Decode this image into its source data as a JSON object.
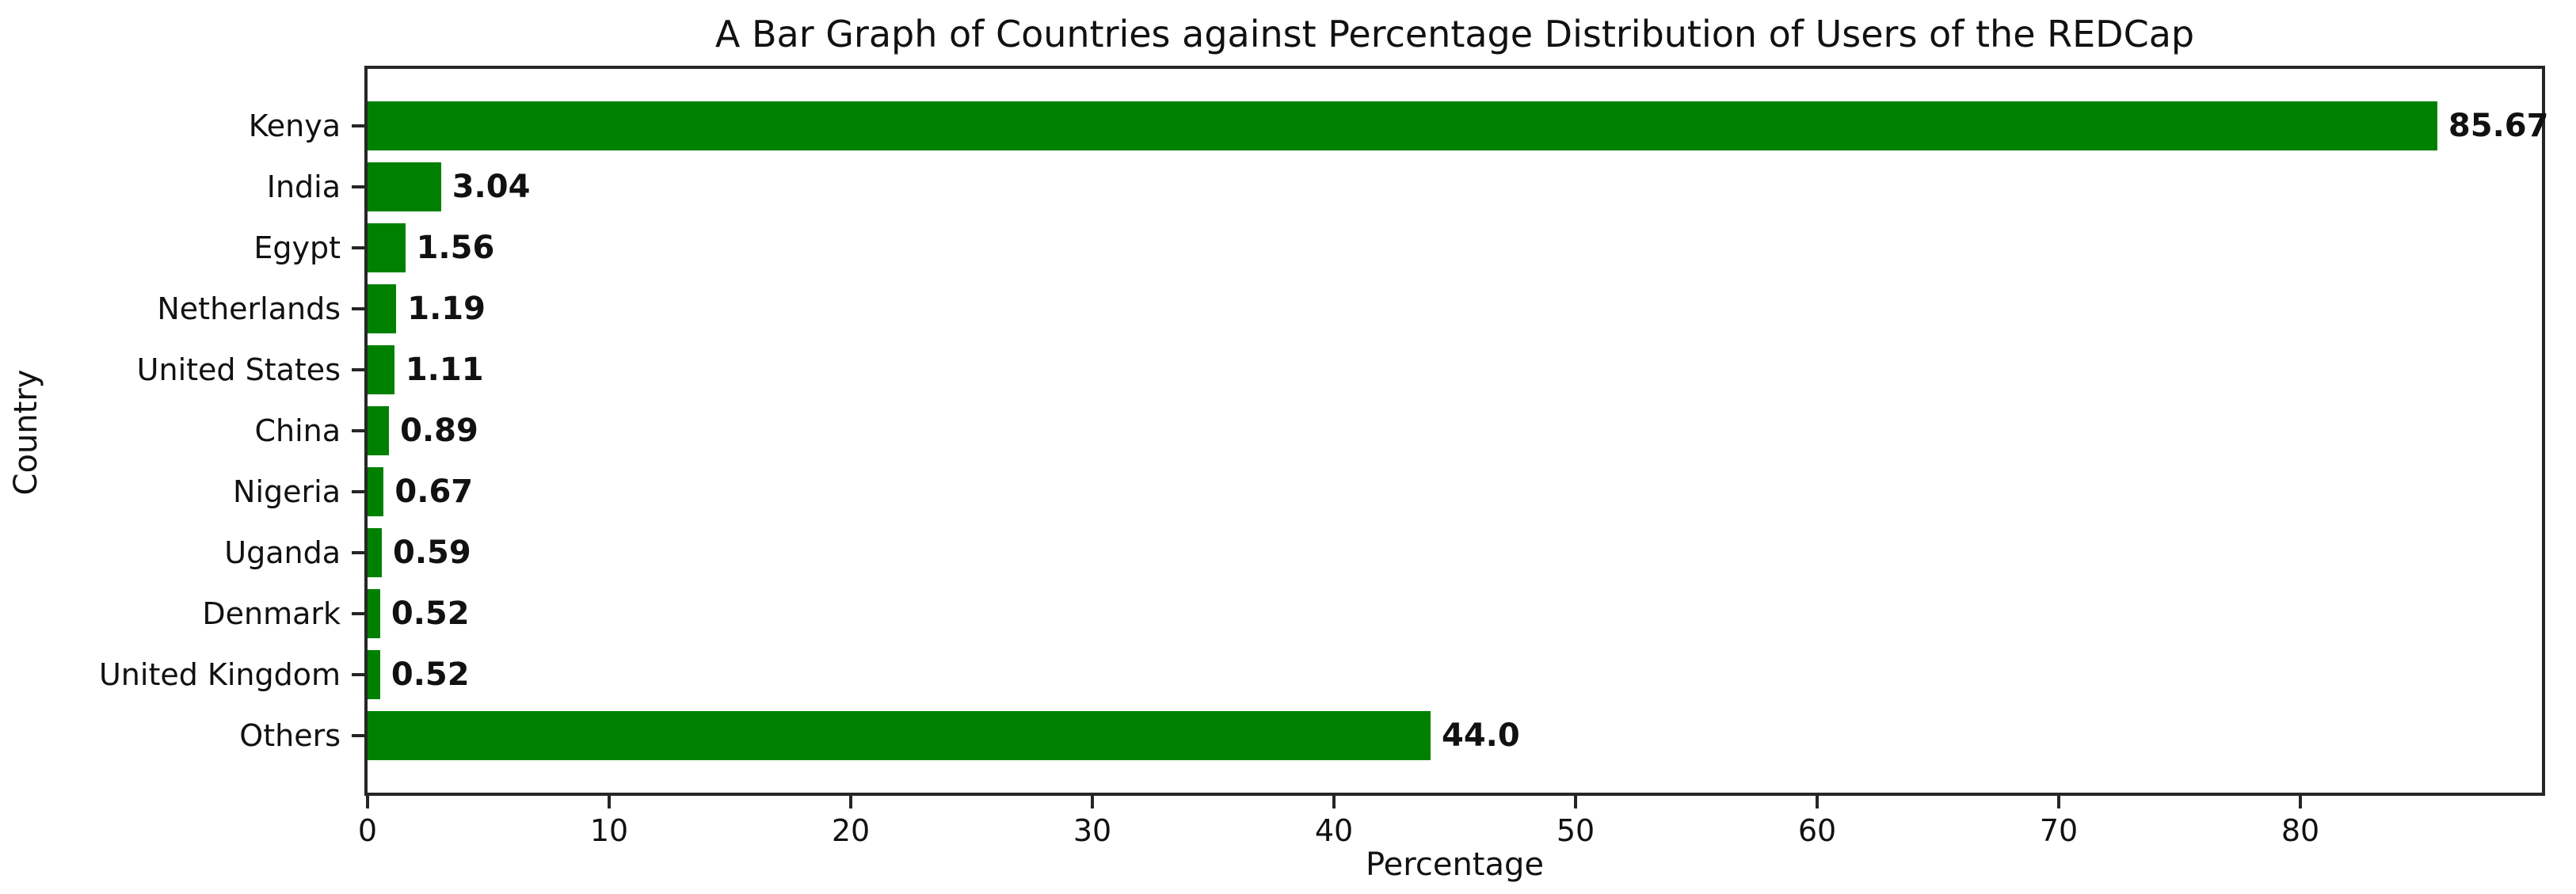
{
  "chart_data": {
    "type": "bar",
    "orientation": "horizontal",
    "title": "A Bar Graph of Countries against Percentage Distribution of Users of the REDCap",
    "xlabel": "Percentage",
    "ylabel": "Country",
    "categories": [
      "Kenya",
      "India",
      "Egypt",
      "Netherlands",
      "United States",
      "China",
      "Nigeria",
      "Uganda",
      "Denmark",
      "United Kingdom",
      "Others"
    ],
    "values": [
      85.67,
      3.04,
      1.56,
      1.19,
      1.11,
      0.89,
      0.67,
      0.59,
      0.52,
      0.52,
      44.0
    ],
    "value_labels": [
      "85.67",
      "3.04",
      "1.56",
      "1.19",
      "1.11",
      "0.89",
      "0.67",
      "0.59",
      "0.52",
      "0.52",
      "44.0"
    ],
    "xlim": [
      0,
      90
    ],
    "xticks": [
      0,
      10,
      20,
      30,
      40,
      50,
      60,
      70,
      80
    ],
    "bar_color": "#008000",
    "spine_color": "#262626",
    "text_color": "#111111",
    "background": "#ffffff",
    "grid": false,
    "legend": null
  }
}
